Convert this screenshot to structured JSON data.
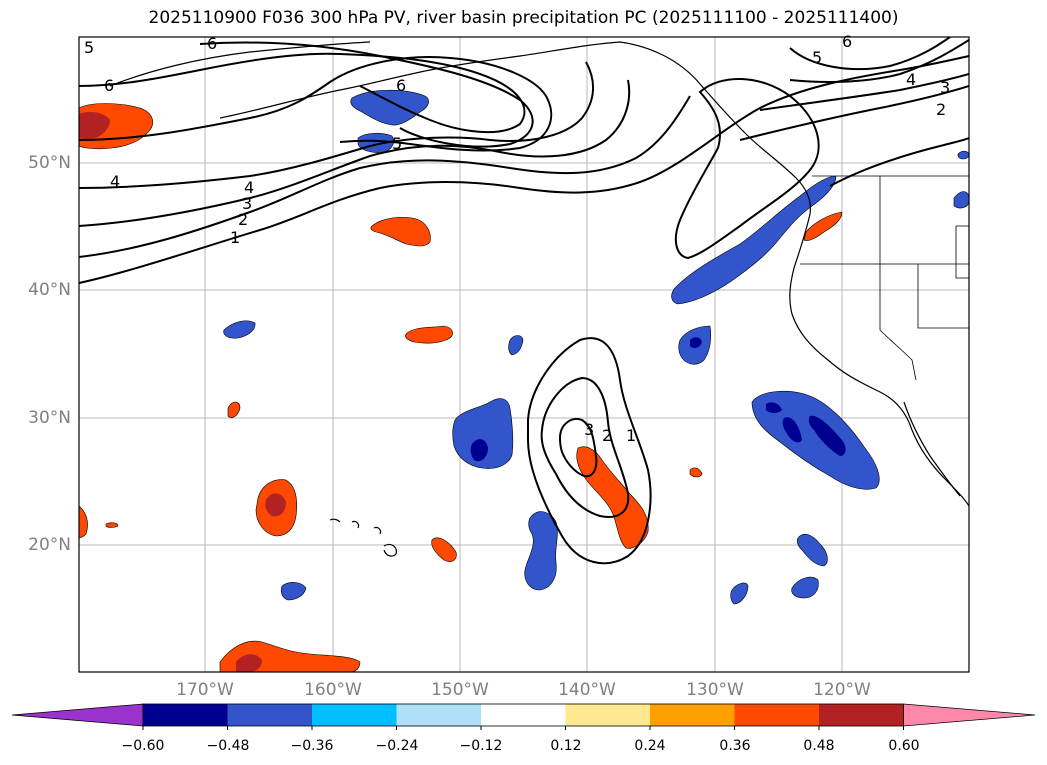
{
  "title": "2025110900 F036 300 hPa PV, river basin precipitation PC (2025111100 - 2025111400)",
  "latitude_labels": [
    "50°N",
    "40°N",
    "30°N",
    "20°N"
  ],
  "longitude_labels": [
    "170°W",
    "160°W",
    "150°W",
    "140°W",
    "130°W",
    "120°W"
  ],
  "colorbar": {
    "tick_labels": [
      "−0.60",
      "−0.48",
      "−0.36",
      "−0.24",
      "−0.12",
      "0.12",
      "0.24",
      "0.36",
      "0.48",
      "0.60"
    ],
    "colors": [
      "#9933cc",
      "#000090",
      "#3355cc",
      "#00bfff",
      "#aee0f8",
      "#ffffff",
      "#ffe890",
      "#ffa000",
      "#ff4800",
      "#b22222",
      "#ff88aa"
    ]
  },
  "pv_contour_labels": [
    "6",
    "6",
    "5",
    "6",
    "5",
    "4",
    "4",
    "3",
    "2",
    "1",
    "5",
    "6",
    "4",
    "3",
    "2",
    "1",
    "2",
    "3"
  ],
  "colors": {
    "neg_dark": "#000090",
    "neg_mid": "#3355cc",
    "neg_light": "#00bfff",
    "pos_light": "#ffa000",
    "pos_mid": "#ff4800",
    "pos_dark": "#b22222",
    "grid": "#b8b8b8",
    "axis_label": "#808080"
  }
}
